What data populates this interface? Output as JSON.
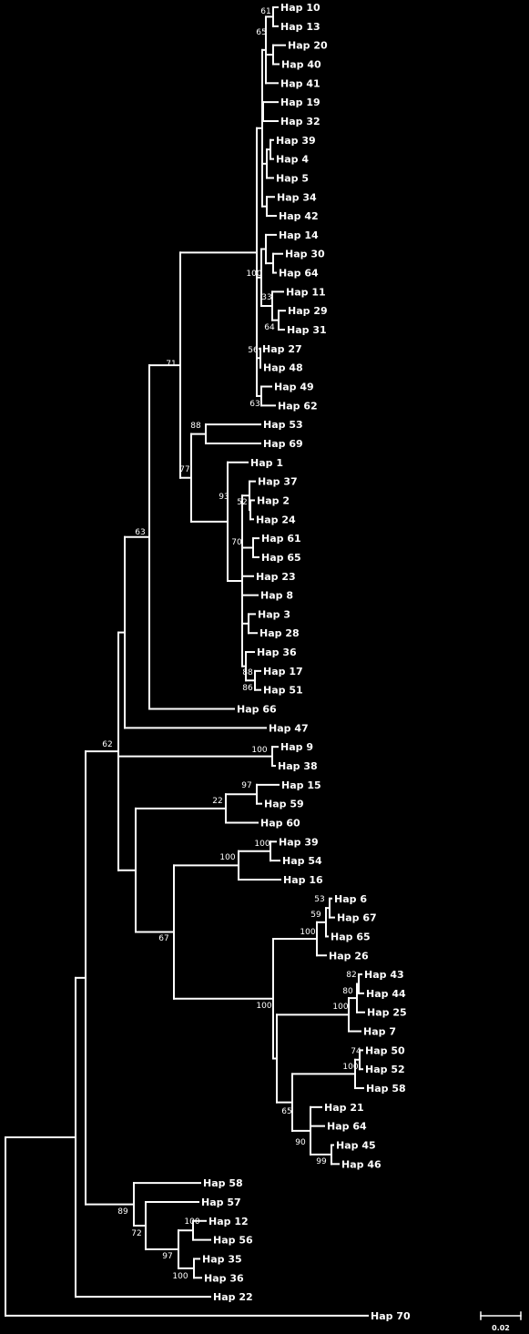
{
  "figure": {
    "scale_bar_label": "0.02",
    "background": "#000000",
    "ink": "#ffffff"
  },
  "leaves": [
    "Hap 10",
    "Hap 13",
    "Hap 20",
    "Hap 40",
    "Hap 41",
    "Hap 19",
    "Hap 32",
    "Hap 39",
    "Hap 4",
    "Hap 5",
    "Hap 34",
    "Hap 42",
    "Hap 14",
    "Hap 30",
    "Hap 64",
    "Hap 11",
    "Hap 29",
    "Hap 31",
    "Hap 27",
    "Hap 48",
    "Hap 49",
    "Hap 62",
    "Hap 53",
    "Hap 69",
    "Hap 1",
    "Hap 37",
    "Hap 2",
    "Hap 24",
    "Hap 61",
    "Hap 65",
    "Hap 23",
    "Hap 8",
    "Hap 3",
    "Hap 28",
    "Hap 36",
    "Hap 17",
    "Hap 51",
    "Hap 66",
    "Hap 47",
    "Hap 9",
    "Hap 38",
    "Hap 15",
    "Hap 59",
    "Hap 60",
    "Hap 39",
    "Hap 54",
    "Hap 16",
    "Hap 6",
    "Hap 67",
    "Hap 65",
    "Hap 26",
    "Hap 43",
    "Hap 44",
    "Hap 25",
    "Hap 7",
    "Hap 50",
    "Hap 52",
    "Hap 58",
    "Hap 21",
    "Hap 64",
    "Hap 45",
    "Hap 46",
    "Hap 58",
    "Hap 57",
    "Hap 12",
    "Hap 56",
    "Hap 35",
    "Hap 36",
    "Hap 22",
    "Hap 70"
  ],
  "support": [
    "61",
    "65",
    "100",
    "33",
    "64",
    "56",
    "63",
    "71",
    "88",
    "77",
    "93",
    "52",
    "70",
    "88",
    "86",
    "63",
    "62",
    "100",
    "97",
    "22",
    "100",
    "100",
    "53",
    "59",
    "100",
    "67",
    "82",
    "80",
    "100",
    "100",
    "74",
    "100",
    "65",
    "90",
    "99",
    "89",
    "72",
    "100",
    "97",
    "100"
  ]
}
